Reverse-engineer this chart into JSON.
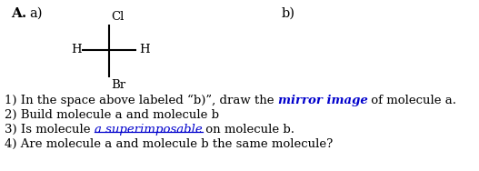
{
  "title_A": "A.",
  "label_a": "a)",
  "label_b": "b)",
  "cl_label": "Cl",
  "br_label": "Br",
  "h_left_label": "H",
  "h_right_label": "H",
  "line1_prefix": "1) In the space above labeled “b)”, draw the ",
  "mirror_image_text": "mirror image",
  "line1_suffix": " of molecule a.",
  "line2": "2) Build molecule a and molecule b",
  "line3_prefix": "3) Is molecule ",
  "superimposable_text": "a superimposable",
  "line3_suffix": " on molecule b.",
  "line4": "4) Are molecule a and molecule b the same molecule?",
  "bg_color": "#ffffff",
  "text_color": "#000000",
  "blue_color": "#0000cc",
  "font_size": 9.5,
  "title_font_size": 11
}
